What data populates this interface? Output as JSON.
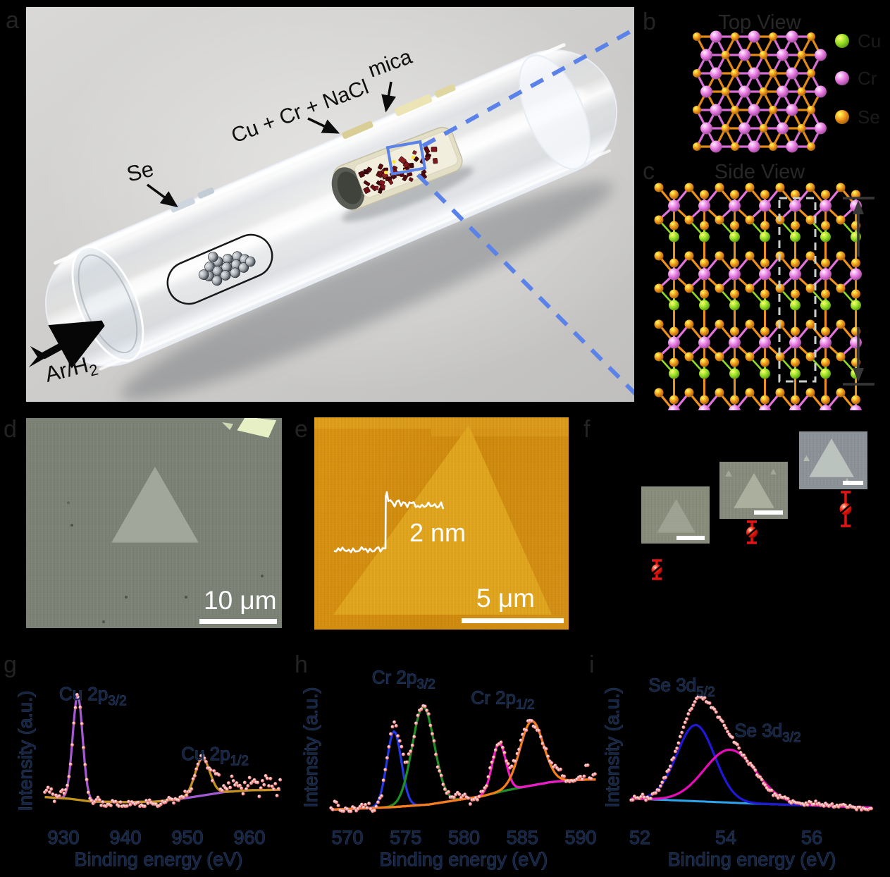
{
  "letters": [
    "a",
    "b",
    "c",
    "d",
    "e",
    "f",
    "g",
    "h",
    "i"
  ],
  "panel_a": {
    "se_label": "Se",
    "source_label": "Cu + Cr + NaCl",
    "substrate_label": "mica",
    "gas_label": "Ar/H",
    "gas_label_sub": "2",
    "zoom_line_color": "#5b82e8"
  },
  "panel_b": {
    "title": "Top View",
    "legend": [
      {
        "label": "Cu",
        "color": "Cu"
      },
      {
        "label": "Cr",
        "color": "Cr"
      },
      {
        "label": "Se",
        "color": "Se"
      }
    ]
  },
  "panel_c": {
    "title": "Side View"
  },
  "atom_colors": {
    "Cu": "#8fdc23",
    "Cr": "#e473de",
    "Se": "#ee9019"
  },
  "panel_d": {
    "scale_bar_label": "10 μm"
  },
  "panel_e": {
    "scale_bar_label": "5 μm",
    "step_height_label": "2 nm"
  },
  "panel_f": {
    "marker_color": "#e41414",
    "points": [
      {
        "x": 102,
        "y": 218,
        "err": 13,
        "r": 7.5
      },
      {
        "x": 237,
        "y": 165,
        "err": 15,
        "r": 8
      },
      {
        "x": 370,
        "y": 132,
        "err": 24,
        "r": 8.5
      }
    ]
  },
  "chart_data": [
    {
      "panel": "g",
      "type": "scatter",
      "xlabel": "Binding energy (eV)",
      "ylabel": "Intensity (a.u.)",
      "x_ticks": [
        930,
        940,
        950,
        960
      ],
      "x_range": [
        927,
        965
      ],
      "scatter_color": "#f08a8a",
      "peaks": [
        {
          "name": "Cu 2p3/2",
          "center": 932.3,
          "amplitude": 0.93,
          "sigma": 0.8,
          "color": "#a55ad2"
        },
        {
          "name": "Cu 2p1/2",
          "center": 952.4,
          "amplitude": 0.33,
          "sigma": 1.2,
          "color": "#c5921a"
        }
      ],
      "baseline": {
        "color": "#2196f3",
        "points": [
          [
            927,
            0.09
          ],
          [
            931,
            0.075
          ],
          [
            934.5,
            0.05
          ],
          [
            940,
            0.045
          ],
          [
            945,
            0.05
          ],
          [
            949,
            0.075
          ],
          [
            952,
            0.1
          ],
          [
            956,
            0.135
          ],
          [
            960,
            0.15
          ],
          [
            965,
            0.155
          ]
        ]
      },
      "noise": {
        "seed": 11,
        "sigma": 0.02,
        "extras": [
          [
            953.5,
            965,
            0.055,
            2.4
          ],
          [
            927,
            930,
            0.035,
            1.7
          ],
          [
            936,
            947,
            -0.018,
            1.0
          ]
        ]
      },
      "annotations": [
        {
          "text": "Cu 2p",
          "sub": "3/2",
          "x": 929.3,
          "y": 0.95
        },
        {
          "text": "Cu 2p",
          "sub": "1/2",
          "x": 949.0,
          "y": 0.42
        }
      ]
    },
    {
      "panel": "h",
      "type": "scatter",
      "xlabel": "Binding energy (eV)",
      "ylabel": "Intensity (a.u.)",
      "x_ticks": [
        570,
        575,
        580,
        585,
        590
      ],
      "x_range": [
        568.6,
        591.3
      ],
      "scatter_color": "#f08a8a",
      "peaks": [
        {
          "name": "Cr 2p3/2 a",
          "center": 574.0,
          "amplitude": 0.74,
          "sigma": 0.62,
          "color": "#2238e0"
        },
        {
          "name": "Cr 2p3/2 b",
          "center": 576.5,
          "amplitude": 0.96,
          "sigma": 0.95,
          "color": "#1d8f24"
        },
        {
          "name": "Cr 2p1/2 a",
          "center": 583.0,
          "amplitude": 0.48,
          "sigma": 0.58,
          "color": "#f318c8"
        },
        {
          "name": "Cr 2p1/2 b",
          "center": 585.8,
          "amplitude": 0.63,
          "sigma": 1.0,
          "color": "#f57f17"
        }
      ],
      "baseline": {
        "color": "#2da5ec",
        "points": [
          [
            568.6,
            0.025
          ],
          [
            571,
            0.035
          ],
          [
            574,
            0.05
          ],
          [
            577,
            0.075
          ],
          [
            579.5,
            0.12
          ],
          [
            581.5,
            0.155
          ],
          [
            583.5,
            0.21
          ],
          [
            585.5,
            0.255
          ],
          [
            587.5,
            0.295
          ],
          [
            589.5,
            0.315
          ],
          [
            591.3,
            0.32
          ]
        ]
      },
      "noise": {
        "seed": 7,
        "sigma": 0.028,
        "extras": [
          [
            587.8,
            591.3,
            0.04,
            1.7
          ],
          [
            568.6,
            570.3,
            0.02,
            1.4
          ]
        ]
      },
      "annotations": [
        {
          "text": "Cr 2p",
          "sub": "3/2",
          "x": 572.1,
          "y": 1.26
        },
        {
          "text": "Cr 2p",
          "sub": "1/2",
          "x": 580.6,
          "y": 1.06
        }
      ]
    },
    {
      "panel": "i",
      "type": "scatter",
      "xlabel": "Binding energy (eV)",
      "ylabel": "Intensity (a.u.)",
      "x_ticks": [
        52,
        54,
        56
      ],
      "x_range": [
        51.8,
        57.4
      ],
      "scatter_color": "#f08a8a",
      "peaks": [
        {
          "name": "Se 3d5/2",
          "center": 53.3,
          "amplitude": 0.72,
          "sigma": 0.44,
          "color": "#2018d8"
        },
        {
          "name": "Se 3d3/2",
          "center": 54.1,
          "amplitude": 0.5,
          "sigma": 0.6,
          "color": "#e80cb8"
        }
      ],
      "baseline": {
        "color": "#2da5ec",
        "points": [
          [
            51.8,
            0.115
          ],
          [
            54.5,
            0.07
          ],
          [
            57.4,
            0.03
          ]
        ]
      },
      "noise": {
        "seed": 23,
        "sigma": 0.018,
        "extras": [
          [
            51.8,
            52.1,
            0.02,
            1.5
          ]
        ]
      },
      "annotations": [
        {
          "text": "Se 3d",
          "sub": "5/2",
          "x": 52.2,
          "y": 1.13
        },
        {
          "text": "Se 3d",
          "sub": "3/2",
          "x": 54.2,
          "y": 0.7
        }
      ]
    }
  ]
}
